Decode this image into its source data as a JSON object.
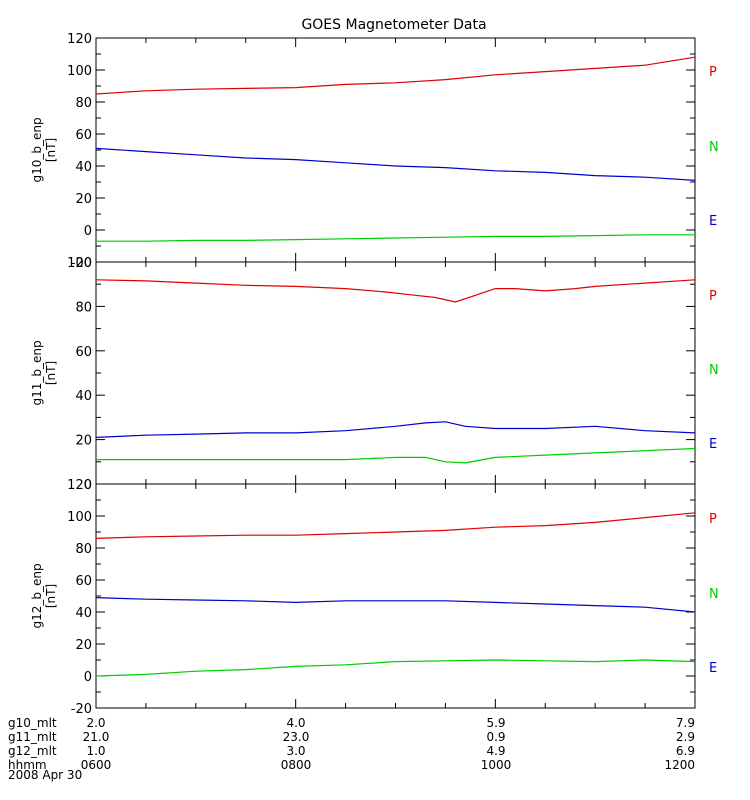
{
  "chart_data": {
    "type": "line",
    "title": "GOES Magnetometer Data",
    "x_range": [
      "06:00",
      "12:00"
    ],
    "panels": [
      {
        "ylabel": "g10_b_enp",
        "yunit": "[nT]",
        "ylim": [
          -20,
          120
        ],
        "yticks": [
          "-20",
          "0",
          "20",
          "40",
          "60",
          "80",
          "100",
          "120"
        ],
        "series": [
          {
            "name": "P",
            "color": "#e00000",
            "x_hours": [
              6.0,
              6.5,
              7.0,
              7.5,
              8.0,
              8.5,
              9.0,
              9.5,
              10.0,
              10.5,
              11.0,
              11.5,
              12.0
            ],
            "values": [
              85,
              87,
              88,
              88.5,
              89,
              91,
              92,
              94,
              97,
              99,
              101,
              103,
              108
            ]
          },
          {
            "name": "N",
            "color": "#00cc00",
            "x_hours": [
              6.0,
              6.5,
              7.0,
              7.5,
              8.0,
              8.5,
              9.0,
              9.5,
              10.0,
              10.5,
              11.0,
              11.5,
              12.0
            ],
            "values": [
              -7,
              -7,
              -6.5,
              -6.5,
              -6,
              -5.5,
              -5,
              -4.5,
              -4,
              -4,
              -3.5,
              -3,
              -3
            ]
          },
          {
            "name": "E",
            "color": "#0000cc",
            "x_hours": [
              6.0,
              6.5,
              7.0,
              7.5,
              8.0,
              8.5,
              9.0,
              9.5,
              10.0,
              10.5,
              11.0,
              11.5,
              12.0
            ],
            "values": [
              51,
              49,
              47,
              45,
              44,
              42,
              40,
              39,
              37,
              36,
              34,
              33,
              31
            ]
          }
        ]
      },
      {
        "ylabel": "g11_b_enp",
        "yunit": "[nT]",
        "ylim": [
          0,
          100
        ],
        "yticks": [
          "0",
          "20",
          "40",
          "60",
          "80",
          "100"
        ],
        "series": [
          {
            "name": "P",
            "color": "#e00000",
            "x_hours": [
              6.0,
              6.5,
              7.0,
              7.5,
              8.0,
              8.5,
              8.9,
              9.2,
              9.4,
              9.6,
              9.8,
              10.0,
              10.2,
              10.5,
              10.8,
              11.0,
              11.5,
              12.0
            ],
            "values": [
              92,
              91.5,
              90.5,
              89.5,
              89,
              88,
              86.5,
              85,
              84,
              82,
              85,
              88,
              88,
              87,
              88,
              89,
              90.5,
              92
            ]
          },
          {
            "name": "N",
            "color": "#00cc00",
            "x_hours": [
              6.0,
              6.5,
              7.0,
              7.5,
              8.0,
              8.5,
              9.0,
              9.3,
              9.5,
              9.7,
              10.0,
              10.5,
              11.0,
              11.5,
              12.0
            ],
            "values": [
              11,
              11,
              11,
              11,
              11,
              11,
              12,
              12,
              10,
              9.5,
              12,
              13,
              14,
              15,
              16
            ]
          },
          {
            "name": "E",
            "color": "#0000cc",
            "x_hours": [
              6.0,
              6.5,
              7.0,
              7.5,
              8.0,
              8.5,
              9.0,
              9.3,
              9.5,
              9.7,
              10.0,
              10.5,
              11.0,
              11.5,
              12.0
            ],
            "values": [
              21,
              22,
              22.5,
              23,
              23,
              24,
              26,
              27.5,
              28,
              26,
              25,
              25,
              26,
              24,
              23
            ]
          }
        ]
      },
      {
        "ylabel": "g12_b_enp",
        "yunit": "[nT]",
        "ylim": [
          -20,
          120
        ],
        "yticks": [
          "-20",
          "0",
          "20",
          "40",
          "60",
          "80",
          "100",
          "120"
        ],
        "series": [
          {
            "name": "P",
            "color": "#e00000",
            "x_hours": [
              6.0,
              6.5,
              7.0,
              7.5,
              8.0,
              8.5,
              9.0,
              9.5,
              10.0,
              10.5,
              11.0,
              11.5,
              12.0
            ],
            "values": [
              86,
              87,
              87.5,
              88,
              88,
              89,
              90,
              91,
              93,
              94,
              96,
              99,
              102
            ]
          },
          {
            "name": "N",
            "color": "#00cc00",
            "x_hours": [
              6.0,
              6.5,
              7.0,
              7.5,
              8.0,
              8.5,
              9.0,
              9.5,
              10.0,
              10.5,
              11.0,
              11.5,
              12.0
            ],
            "values": [
              0,
              1,
              3,
              4,
              6,
              7,
              9,
              9.5,
              10,
              9.5,
              9,
              10,
              9
            ]
          },
          {
            "name": "E",
            "color": "#0000cc",
            "x_hours": [
              6.0,
              6.5,
              7.0,
              7.5,
              8.0,
              8.5,
              9.0,
              9.5,
              10.0,
              10.5,
              11.0,
              11.5,
              12.0
            ],
            "values": [
              49,
              48,
              47.5,
              47,
              46,
              47,
              47,
              47,
              46,
              45,
              44,
              43,
              40
            ]
          }
        ]
      }
    ],
    "xaxis_rows": [
      {
        "label": "g10_mlt",
        "values": [
          "2.0",
          "4.0",
          "5.9",
          "7.9"
        ]
      },
      {
        "label": "g11_mlt",
        "values": [
          "21.0",
          "23.0",
          "0.9",
          "2.9"
        ]
      },
      {
        "label": "g12_mlt",
        "values": [
          "1.0",
          "3.0",
          "4.9",
          "6.9"
        ]
      },
      {
        "label": "hhmm",
        "values": [
          "0600",
          "0800",
          "1000",
          "1200"
        ]
      }
    ],
    "date_label": "2008 Apr 30"
  }
}
